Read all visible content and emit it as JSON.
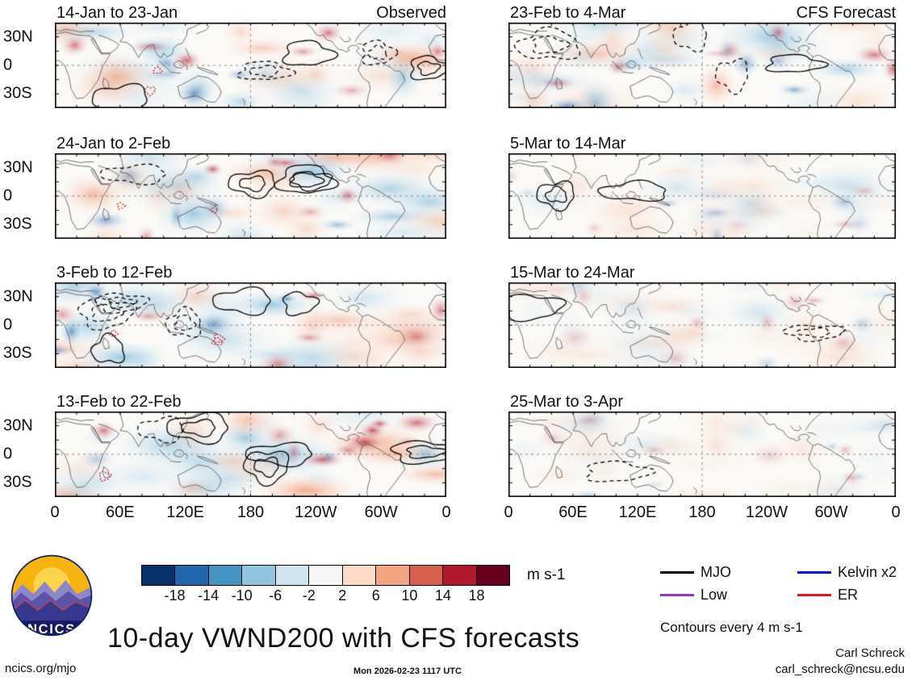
{
  "chart_data": {
    "type": "heatmap",
    "title": "10-day VWND200 with CFS forecasts",
    "units": "m s-1",
    "contour_note": "Contours every 4 m s-1",
    "columns": [
      "Observed",
      "CFS Forecast"
    ],
    "panels": [
      {
        "title": "14-Jan to 23-Jan",
        "corner_label": "Observed",
        "column": "Observed"
      },
      {
        "title": "24-Jan to 2-Feb",
        "corner_label": "",
        "column": "Observed"
      },
      {
        "title": "3-Feb to 12-Feb",
        "corner_label": "",
        "column": "Observed"
      },
      {
        "title": "13-Feb to 22-Feb",
        "corner_label": "",
        "column": "Observed"
      },
      {
        "title": "23-Feb to 4-Mar",
        "corner_label": "CFS Forecast",
        "column": "CFS Forecast"
      },
      {
        "title": "5-Mar to 14-Mar",
        "corner_label": "",
        "column": "CFS Forecast"
      },
      {
        "title": "15-Mar to 24-Mar",
        "corner_label": "",
        "column": "CFS Forecast"
      },
      {
        "title": "25-Mar to 3-Apr",
        "corner_label": "",
        "column": "CFS Forecast"
      }
    ],
    "x_axis": {
      "tick_labels": [
        "0",
        "60E",
        "120E",
        "180",
        "120W",
        "60W",
        "0"
      ]
    },
    "y_axis": {
      "tick_labels": [
        "30N",
        "0",
        "30S"
      ]
    },
    "colorbar": {
      "levels": [
        -18,
        -14,
        -10,
        -6,
        -2,
        2,
        6,
        10,
        14,
        18
      ],
      "colors": [
        "#08306b",
        "#2166ac",
        "#4393c3",
        "#92c5de",
        "#d1e5f0",
        "#f7f7f7",
        "#fddbc7",
        "#f4a582",
        "#d6604d",
        "#b2182b",
        "#67001f"
      ],
      "units": "m s-1"
    },
    "legend": [
      {
        "label": "MJO",
        "color": "#000000"
      },
      {
        "label": "Kelvin x2",
        "color": "#0000ee"
      },
      {
        "label": "Low",
        "color": "#9b30d0"
      },
      {
        "label": "ER",
        "color": "#e8112d"
      }
    ]
  },
  "branding": {
    "logo_text": "NCICS"
  },
  "footer": {
    "site": "ncics.org/mjo",
    "timestamp": "Mon 2026-02-23 1117 UTC",
    "credit": "Carl Schreck",
    "email": "carl_schreck@ncsu.edu"
  }
}
